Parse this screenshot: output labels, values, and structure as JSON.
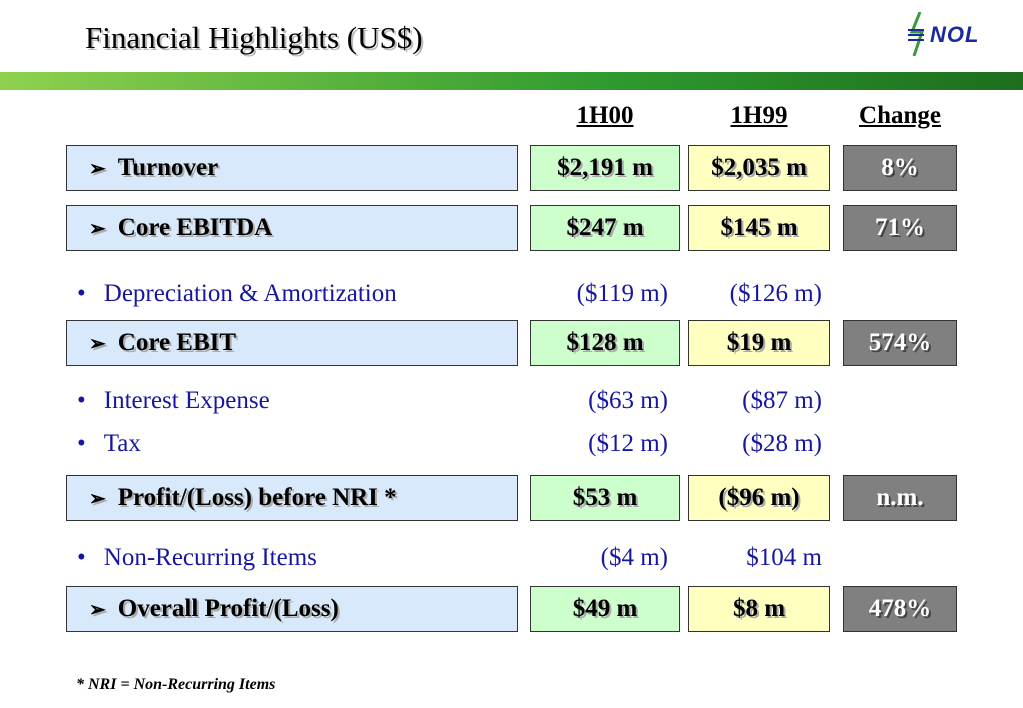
{
  "header": {
    "title": "Financial Highlights (US$)",
    "logo": "NOL"
  },
  "table": {
    "columns": [
      "1H00",
      "1H99",
      "Change"
    ],
    "rows": [
      {
        "label": "Turnover",
        "values": [
          "$2,191 m",
          "$2,035 m",
          "8%"
        ]
      },
      {
        "label": "Core EBITDA",
        "values": [
          "$247 m",
          "$145 m",
          "71%"
        ]
      },
      {
        "label": "Depreciation & Amortization",
        "values": [
          "($119 m)",
          "($126 m)"
        ]
      },
      {
        "label": "Core EBIT",
        "values": [
          "$128 m",
          "$19 m",
          "574%"
        ]
      },
      {
        "label": "Interest Expense",
        "values": [
          "($63 m)",
          "($87 m)"
        ]
      },
      {
        "label": "Tax",
        "values": [
          "($12 m)",
          "($28 m)"
        ]
      },
      {
        "label": "Profit/(Loss) before NRI *",
        "values": [
          "$53 m",
          "($96 m)",
          "n.m."
        ]
      },
      {
        "label": "Non-Recurring Items",
        "values": [
          "($4 m)",
          "$104 m"
        ]
      },
      {
        "label": "Overall Profit/(Loss)",
        "values": [
          "$49 m",
          "$8 m",
          "478%"
        ]
      }
    ]
  },
  "footnote": "* NRI = Non-Recurring Items"
}
